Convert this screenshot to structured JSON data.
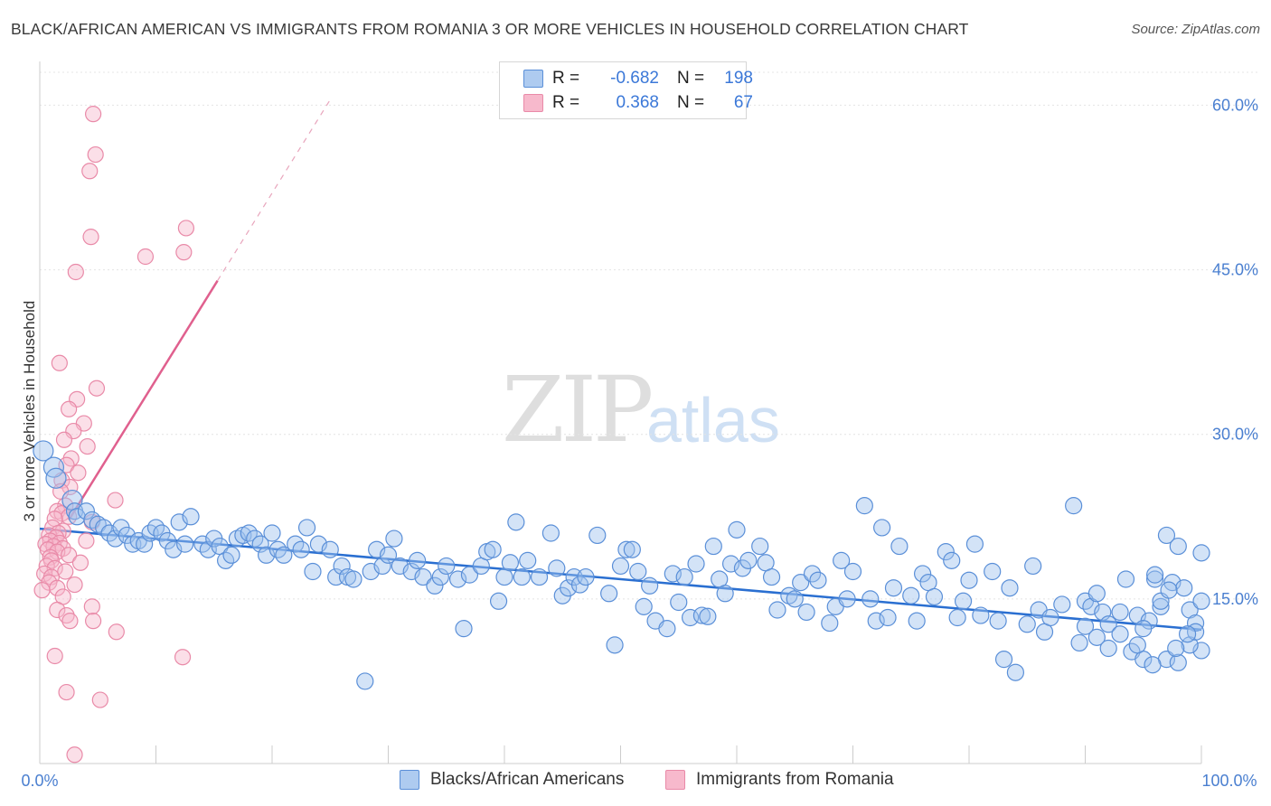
{
  "title": "BLACK/AFRICAN AMERICAN VS IMMIGRANTS FROM ROMANIA 3 OR MORE VEHICLES IN HOUSEHOLD CORRELATION CHART",
  "source": "Source: ZipAtlas.com",
  "watermark": {
    "zip": "ZIP",
    "atlas": "atlas"
  },
  "legend": {
    "r_label": "R =",
    "n_label": "N =",
    "rows": [
      {
        "r": "-0.682",
        "n": "198",
        "color": "#aecbf0"
      },
      {
        "r": "0.368",
        "n": "67",
        "color": "#f7b9cc"
      }
    ]
  },
  "colors": {
    "blue_fill": "#9ec2ee",
    "blue_stroke": "#5a8fd8",
    "blue_line": "#2a6fd1",
    "pink_fill": "#f6b8cb",
    "pink_stroke": "#e98aa8",
    "pink_line": "#e0608e"
  },
  "chart_data": {
    "type": "scatter",
    "title": "BLACK/AFRICAN AMERICAN VS IMMIGRANTS FROM ROMANIA 3 OR MORE VEHICLES IN HOUSEHOLD CORRELATION CHART",
    "xlabel": "",
    "ylabel": "3 or more Vehicles in Household",
    "xlim": [
      0,
      100
    ],
    "ylim": [
      0,
      63
    ],
    "x_ticks": [
      "0.0%",
      "100.0%"
    ],
    "y_ticks": [
      {
        "value": 15,
        "label": "15.0%"
      },
      {
        "value": 30,
        "label": "30.0%"
      },
      {
        "value": 45,
        "label": "45.0%"
      },
      {
        "value": 60,
        "label": "60.0%"
      }
    ],
    "grid": true,
    "legend_position": "top-center",
    "series": [
      {
        "name": "Blacks/African Americans",
        "r": -0.682,
        "n": 198,
        "trend": {
          "x0": 0,
          "y0": 21.4,
          "x1": 100,
          "y1": 12.2
        },
        "points": [
          [
            0.3,
            28.5
          ],
          [
            1.2,
            27
          ],
          [
            1.4,
            26
          ],
          [
            2.8,
            24
          ],
          [
            3,
            23
          ],
          [
            3.2,
            22.5
          ],
          [
            4,
            23
          ],
          [
            4.5,
            22.2
          ],
          [
            5,
            21.8
          ],
          [
            5.5,
            21.5
          ],
          [
            6,
            21
          ],
          [
            6.5,
            20.5
          ],
          [
            7,
            21.5
          ],
          [
            7.5,
            20.8
          ],
          [
            8,
            20
          ],
          [
            8.5,
            20.3
          ],
          [
            9,
            20
          ],
          [
            9.5,
            21
          ],
          [
            10,
            21.5
          ],
          [
            10.5,
            21
          ],
          [
            11,
            20.3
          ],
          [
            11.5,
            19.5
          ],
          [
            12,
            22
          ],
          [
            12.5,
            20
          ],
          [
            13,
            22.5
          ],
          [
            14,
            20
          ],
          [
            14.5,
            19.5
          ],
          [
            15,
            20.5
          ],
          [
            15.5,
            19.8
          ],
          [
            16,
            18.5
          ],
          [
            16.5,
            19
          ],
          [
            17,
            20.5
          ],
          [
            17.5,
            20.8
          ],
          [
            18,
            21
          ],
          [
            18.5,
            20.5
          ],
          [
            19,
            20
          ],
          [
            19.5,
            19
          ],
          [
            20,
            21
          ],
          [
            20.5,
            19.5
          ],
          [
            21,
            19
          ],
          [
            22,
            20
          ],
          [
            22.5,
            19.5
          ],
          [
            23,
            21.5
          ],
          [
            23.5,
            17.5
          ],
          [
            24,
            20
          ],
          [
            25,
            19.5
          ],
          [
            25.5,
            17
          ],
          [
            26,
            18
          ],
          [
            26.5,
            17
          ],
          [
            27,
            16.8
          ],
          [
            28,
            7.5
          ],
          [
            28.5,
            17.5
          ],
          [
            29,
            19.5
          ],
          [
            29.5,
            18
          ],
          [
            30,
            19
          ],
          [
            30.5,
            20.5
          ],
          [
            31,
            18
          ],
          [
            32,
            17.5
          ],
          [
            32.5,
            18.5
          ],
          [
            33,
            17
          ],
          [
            34,
            16.2
          ],
          [
            34.5,
            17
          ],
          [
            35,
            18
          ],
          [
            36,
            16.8
          ],
          [
            36.5,
            12.3
          ],
          [
            37,
            17.2
          ],
          [
            38,
            18
          ],
          [
            38.5,
            19.3
          ],
          [
            39,
            19.5
          ],
          [
            39.5,
            14.8
          ],
          [
            40,
            17
          ],
          [
            40.5,
            18.3
          ],
          [
            41,
            22
          ],
          [
            41.5,
            17
          ],
          [
            42,
            18.5
          ],
          [
            43,
            17
          ],
          [
            44,
            21
          ],
          [
            44.5,
            17.8
          ],
          [
            45,
            15.3
          ],
          [
            45.5,
            16
          ],
          [
            46,
            17
          ],
          [
            46.5,
            16.3
          ],
          [
            47,
            17
          ],
          [
            48,
            20.8
          ],
          [
            49,
            15.5
          ],
          [
            49.5,
            10.8
          ],
          [
            50,
            18
          ],
          [
            50.5,
            19.5
          ],
          [
            51,
            19.5
          ],
          [
            51.5,
            17.5
          ],
          [
            52,
            14.3
          ],
          [
            52.5,
            16.2
          ],
          [
            53,
            13
          ],
          [
            54,
            12.3
          ],
          [
            54.5,
            17.3
          ],
          [
            55,
            14.7
          ],
          [
            55.5,
            17
          ],
          [
            56,
            13.3
          ],
          [
            56.5,
            18.2
          ],
          [
            57,
            13.5
          ],
          [
            57.5,
            13.4
          ],
          [
            58,
            19.8
          ],
          [
            58.5,
            16.8
          ],
          [
            59,
            15.5
          ],
          [
            59.5,
            18.2
          ],
          [
            60,
            21.3
          ],
          [
            60.5,
            17.8
          ],
          [
            61,
            18.5
          ],
          [
            62,
            19.8
          ],
          [
            62.5,
            18.3
          ],
          [
            63,
            17
          ],
          [
            63.5,
            14
          ],
          [
            64.5,
            15.3
          ],
          [
            65,
            15
          ],
          [
            65.5,
            16.5
          ],
          [
            66,
            13.8
          ],
          [
            66.5,
            17.3
          ],
          [
            67,
            16.7
          ],
          [
            68,
            12.8
          ],
          [
            68.5,
            14.3
          ],
          [
            69,
            18.5
          ],
          [
            69.5,
            15
          ],
          [
            70,
            17.5
          ],
          [
            71,
            23.5
          ],
          [
            71.5,
            15
          ],
          [
            72,
            13
          ],
          [
            72.5,
            21.5
          ],
          [
            73,
            13.3
          ],
          [
            73.5,
            16
          ],
          [
            74,
            19.8
          ],
          [
            75,
            15.3
          ],
          [
            75.5,
            13
          ],
          [
            76,
            17.3
          ],
          [
            76.5,
            16.5
          ],
          [
            77,
            15.2
          ],
          [
            78,
            19.3
          ],
          [
            78.5,
            18.5
          ],
          [
            79,
            13.3
          ],
          [
            79.5,
            14.8
          ],
          [
            80,
            16.7
          ],
          [
            80.5,
            20
          ],
          [
            81,
            13.5
          ],
          [
            82,
            17.5
          ],
          [
            82.5,
            13
          ],
          [
            83,
            9.5
          ],
          [
            83.5,
            16
          ],
          [
            84,
            8.3
          ],
          [
            85,
            12.7
          ],
          [
            85.5,
            18
          ],
          [
            86,
            14
          ],
          [
            86.5,
            12
          ],
          [
            87,
            13.3
          ],
          [
            88,
            14.5
          ],
          [
            89,
            23.5
          ],
          [
            89.5,
            11
          ],
          [
            90,
            14.8
          ],
          [
            90.5,
            14.3
          ],
          [
            91,
            15.5
          ],
          [
            91.5,
            13.8
          ],
          [
            92,
            12.7
          ],
          [
            93,
            11.8
          ],
          [
            93.5,
            16.8
          ],
          [
            94,
            10.2
          ],
          [
            94.5,
            13.5
          ],
          [
            95,
            9.5
          ],
          [
            95.5,
            13
          ],
          [
            96,
            16.8
          ],
          [
            96.5,
            14.3
          ],
          [
            97,
            20.8
          ],
          [
            97.5,
            16.5
          ],
          [
            98,
            19.8
          ],
          [
            98.5,
            16
          ],
          [
            99,
            14
          ],
          [
            99.5,
            12.8
          ],
          [
            100,
            10.3
          ],
          [
            90,
            12.5
          ],
          [
            91,
            11.5
          ],
          [
            92,
            10.5
          ],
          [
            93,
            13.8
          ],
          [
            94.5,
            10.8
          ],
          [
            95,
            12.3
          ],
          [
            96,
            17.2
          ],
          [
            97,
            9.5
          ],
          [
            98,
            9.2
          ],
          [
            99,
            10.8
          ],
          [
            99.5,
            12
          ],
          [
            100,
            19.2
          ],
          [
            96.5,
            14.8
          ],
          [
            97.2,
            15.8
          ],
          [
            98.8,
            11.8
          ],
          [
            100,
            14.8
          ],
          [
            95.8,
            9.0
          ],
          [
            97.8,
            10.5
          ]
        ]
      },
      {
        "name": "Immigrants from Romania",
        "r": 0.368,
        "n": 67,
        "trend": {
          "x0": 2.5,
          "y0": 22.2,
          "x1": 15.3,
          "y1": 44,
          "dash_x1": 25,
          "dash_y1": 60.5
        },
        "points": [
          [
            4.6,
            59.2
          ],
          [
            4.8,
            55.5
          ],
          [
            4.3,
            54
          ],
          [
            12.6,
            48.8
          ],
          [
            4.4,
            48
          ],
          [
            9.1,
            46.2
          ],
          [
            12.4,
            46.6
          ],
          [
            3.1,
            44.8
          ],
          [
            1.7,
            36.5
          ],
          [
            4.9,
            34.2
          ],
          [
            3.2,
            33.2
          ],
          [
            2.5,
            32.3
          ],
          [
            3.8,
            31
          ],
          [
            2.9,
            30.3
          ],
          [
            2.1,
            29.5
          ],
          [
            4.1,
            28.9
          ],
          [
            2.7,
            27.8
          ],
          [
            2.3,
            27.2
          ],
          [
            3.3,
            26.5
          ],
          [
            1.9,
            25.8
          ],
          [
            2.6,
            25.2
          ],
          [
            1.8,
            24.8
          ],
          [
            6.5,
            24
          ],
          [
            2.2,
            23.5
          ],
          [
            1.5,
            23
          ],
          [
            1.9,
            22.8
          ],
          [
            2.5,
            22.5
          ],
          [
            1.3,
            22.3
          ],
          [
            4.5,
            22
          ],
          [
            1.1,
            21.5
          ],
          [
            2.0,
            21.2
          ],
          [
            1.6,
            21
          ],
          [
            0.8,
            20.8
          ],
          [
            1.4,
            20.6
          ],
          [
            0.9,
            20.3
          ],
          [
            1.7,
            20.1
          ],
          [
            0.5,
            20
          ],
          [
            1.2,
            19.8
          ],
          [
            2.0,
            19.6
          ],
          [
            0.7,
            19.5
          ],
          [
            1.5,
            19.3
          ],
          [
            2.5,
            19.0
          ],
          [
            0.9,
            18.8
          ],
          [
            1.0,
            18.5
          ],
          [
            3.5,
            18.3
          ],
          [
            0.6,
            18.0
          ],
          [
            1.3,
            17.8
          ],
          [
            2.2,
            17.5
          ],
          [
            0.4,
            17.3
          ],
          [
            1.0,
            17.0
          ],
          [
            0.8,
            16.5
          ],
          [
            3.0,
            16.3
          ],
          [
            1.5,
            16.0
          ],
          [
            0.2,
            15.8
          ],
          [
            2.0,
            15.2
          ],
          [
            4.5,
            14.3
          ],
          [
            1.5,
            14.0
          ],
          [
            2.3,
            13.5
          ],
          [
            2.6,
            13.0
          ],
          [
            4.6,
            13.0
          ],
          [
            6.6,
            12.0
          ],
          [
            1.3,
            9.8
          ],
          [
            12.3,
            9.7
          ],
          [
            2.3,
            6.5
          ],
          [
            5.2,
            5.8
          ],
          [
            3.0,
            0.8
          ],
          [
            4.0,
            20.3
          ]
        ]
      }
    ]
  }
}
